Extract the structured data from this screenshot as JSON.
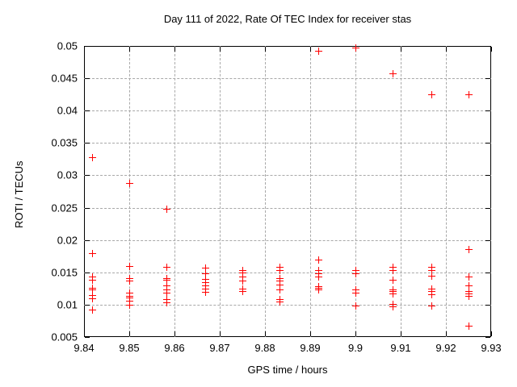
{
  "title": "Day 111 of 2022, Rate Of TEC Index for receiver stas",
  "chart_data": {
    "type": "scatter",
    "title": "Day 111 of 2022, Rate Of TEC Index for receiver stas",
    "xlabel": "GPS time / hours",
    "ylabel": "ROTI / TECUs",
    "xlim": [
      9.84,
      9.93
    ],
    "ylim": [
      0.005,
      0.05
    ],
    "xticks": [
      9.84,
      9.85,
      9.86,
      9.87,
      9.88,
      9.89,
      9.9,
      9.91,
      9.92,
      9.93
    ],
    "xtick_labels": [
      "9.84",
      "9.85",
      "9.86",
      "9.87",
      "9.88",
      "9.89",
      "9.9",
      "9.91",
      "9.92",
      "9.93"
    ],
    "yticks": [
      0.005,
      0.01,
      0.015,
      0.02,
      0.025,
      0.03,
      0.035,
      0.04,
      0.045,
      0.05
    ],
    "ytick_labels": [
      "0.005",
      "0.01",
      "0.015",
      "0.02",
      "0.025",
      "0.03",
      "0.035",
      "0.04",
      "0.045",
      "0.05"
    ],
    "grid": true,
    "legend_position": "none",
    "marker": "plus",
    "colors": {
      "marker": "#ff0000",
      "grid": "#a8a8a8",
      "border": "#000000",
      "text": "#000000",
      "background": "#ffffff"
    },
    "series": [
      {
        "name": "ROTI",
        "points": [
          [
            9.8417,
            0.0328
          ],
          [
            9.8417,
            0.018
          ],
          [
            9.8417,
            0.0143
          ],
          [
            9.8417,
            0.0138
          ],
          [
            9.8417,
            0.0126
          ],
          [
            9.8417,
            0.0123
          ],
          [
            9.8417,
            0.0115
          ],
          [
            9.8417,
            0.011
          ],
          [
            9.8417,
            0.0093
          ],
          [
            9.85,
            0.0288
          ],
          [
            9.85,
            0.016
          ],
          [
            9.85,
            0.0141
          ],
          [
            9.85,
            0.0137
          ],
          [
            9.85,
            0.0118
          ],
          [
            9.85,
            0.0114
          ],
          [
            9.85,
            0.0111
          ],
          [
            9.85,
            0.0106
          ],
          [
            9.85,
            0.01
          ],
          [
            9.8583,
            0.0248
          ],
          [
            9.8583,
            0.0158
          ],
          [
            9.8583,
            0.0141
          ],
          [
            9.8583,
            0.0138
          ],
          [
            9.8583,
            0.013
          ],
          [
            9.8583,
            0.0124
          ],
          [
            9.8583,
            0.0118
          ],
          [
            9.8583,
            0.0108
          ],
          [
            9.8583,
            0.0104
          ],
          [
            9.8667,
            0.0157
          ],
          [
            9.8667,
            0.0148
          ],
          [
            9.8667,
            0.014
          ],
          [
            9.8667,
            0.0135
          ],
          [
            9.8667,
            0.013
          ],
          [
            9.8667,
            0.0125
          ],
          [
            9.8667,
            0.012
          ],
          [
            9.875,
            0.0154
          ],
          [
            9.875,
            0.015
          ],
          [
            9.875,
            0.0143
          ],
          [
            9.875,
            0.0137
          ],
          [
            9.875,
            0.0125
          ],
          [
            9.875,
            0.0121
          ],
          [
            9.8833,
            0.0158
          ],
          [
            9.8833,
            0.0153
          ],
          [
            9.8833,
            0.0141
          ],
          [
            9.8833,
            0.0137
          ],
          [
            9.8833,
            0.0131
          ],
          [
            9.8833,
            0.0124
          ],
          [
            9.8833,
            0.0109
          ],
          [
            9.8833,
            0.0105
          ],
          [
            9.8917,
            0.0493
          ],
          [
            9.8917,
            0.017
          ],
          [
            9.8917,
            0.0153
          ],
          [
            9.8917,
            0.0149
          ],
          [
            9.8917,
            0.0143
          ],
          [
            9.8917,
            0.0128
          ],
          [
            9.8917,
            0.0126
          ],
          [
            9.8917,
            0.0123
          ],
          [
            9.9,
            0.0497
          ],
          [
            9.9,
            0.0153
          ],
          [
            9.9,
            0.0148
          ],
          [
            9.9,
            0.0123
          ],
          [
            9.9,
            0.0119
          ],
          [
            9.9,
            0.0098
          ],
          [
            9.9083,
            0.0458
          ],
          [
            9.9083,
            0.0158
          ],
          [
            9.9083,
            0.0154
          ],
          [
            9.9083,
            0.0138
          ],
          [
            9.9083,
            0.0124
          ],
          [
            9.9083,
            0.0121
          ],
          [
            9.9083,
            0.0117
          ],
          [
            9.9083,
            0.0101
          ],
          [
            9.9083,
            0.0097
          ],
          [
            9.9167,
            0.0425
          ],
          [
            9.9167,
            0.0159
          ],
          [
            9.9167,
            0.0154
          ],
          [
            9.9167,
            0.0145
          ],
          [
            9.9167,
            0.0125
          ],
          [
            9.9167,
            0.0121
          ],
          [
            9.9167,
            0.0116
          ],
          [
            9.9167,
            0.0098
          ],
          [
            9.925,
            0.0425
          ],
          [
            9.925,
            0.0186
          ],
          [
            9.925,
            0.0143
          ],
          [
            9.925,
            0.013
          ],
          [
            9.925,
            0.0121
          ],
          [
            9.925,
            0.0117
          ],
          [
            9.925,
            0.0113
          ],
          [
            9.925,
            0.0068
          ]
        ]
      }
    ]
  }
}
